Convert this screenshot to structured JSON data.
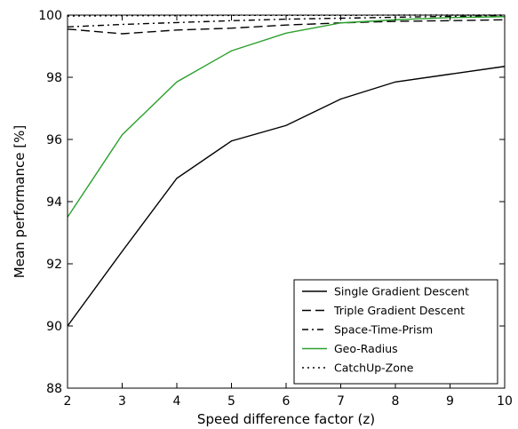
{
  "chart_data": {
    "type": "line",
    "xlabel": "Speed difference factor (z)",
    "ylabel": "Mean performance [%]",
    "xlim": [
      2,
      10
    ],
    "ylim": [
      88,
      100
    ],
    "xticks": [
      2,
      3,
      4,
      5,
      6,
      7,
      8,
      9,
      10
    ],
    "yticks": [
      88,
      90,
      92,
      94,
      96,
      98,
      100
    ],
    "x": [
      2,
      3,
      4,
      5,
      6,
      7,
      8,
      9,
      10
    ],
    "grid": false,
    "legend_position": "bottom-right",
    "series": [
      {
        "name": "Single Gradient Descent",
        "color": "#000000",
        "dash": "solid",
        "values": [
          90.0,
          92.4,
          94.75,
          95.95,
          96.45,
          97.3,
          97.85,
          98.1,
          98.35
        ]
      },
      {
        "name": "Triple Gradient Descent",
        "color": "#000000",
        "dash": "dashed",
        "values": [
          99.55,
          99.4,
          99.52,
          99.58,
          99.68,
          99.75,
          99.8,
          99.82,
          99.85
        ]
      },
      {
        "name": "Space-Time-Prism",
        "color": "#000000",
        "dash": "dashdot",
        "values": [
          99.62,
          99.7,
          99.76,
          99.82,
          99.87,
          99.9,
          99.93,
          99.96,
          99.97
        ]
      },
      {
        "name": "Geo-Radius",
        "color": "#2ca02c",
        "dash": "solid",
        "values": [
          93.5,
          96.15,
          97.85,
          98.85,
          99.42,
          99.75,
          99.85,
          99.92,
          99.95
        ]
      },
      {
        "name": "CatchUp-Zone",
        "color": "#000000",
        "dash": "dotted",
        "values": [
          99.97,
          99.98,
          99.98,
          99.99,
          99.99,
          99.99,
          100.0,
          100.0,
          100.0
        ]
      }
    ]
  }
}
